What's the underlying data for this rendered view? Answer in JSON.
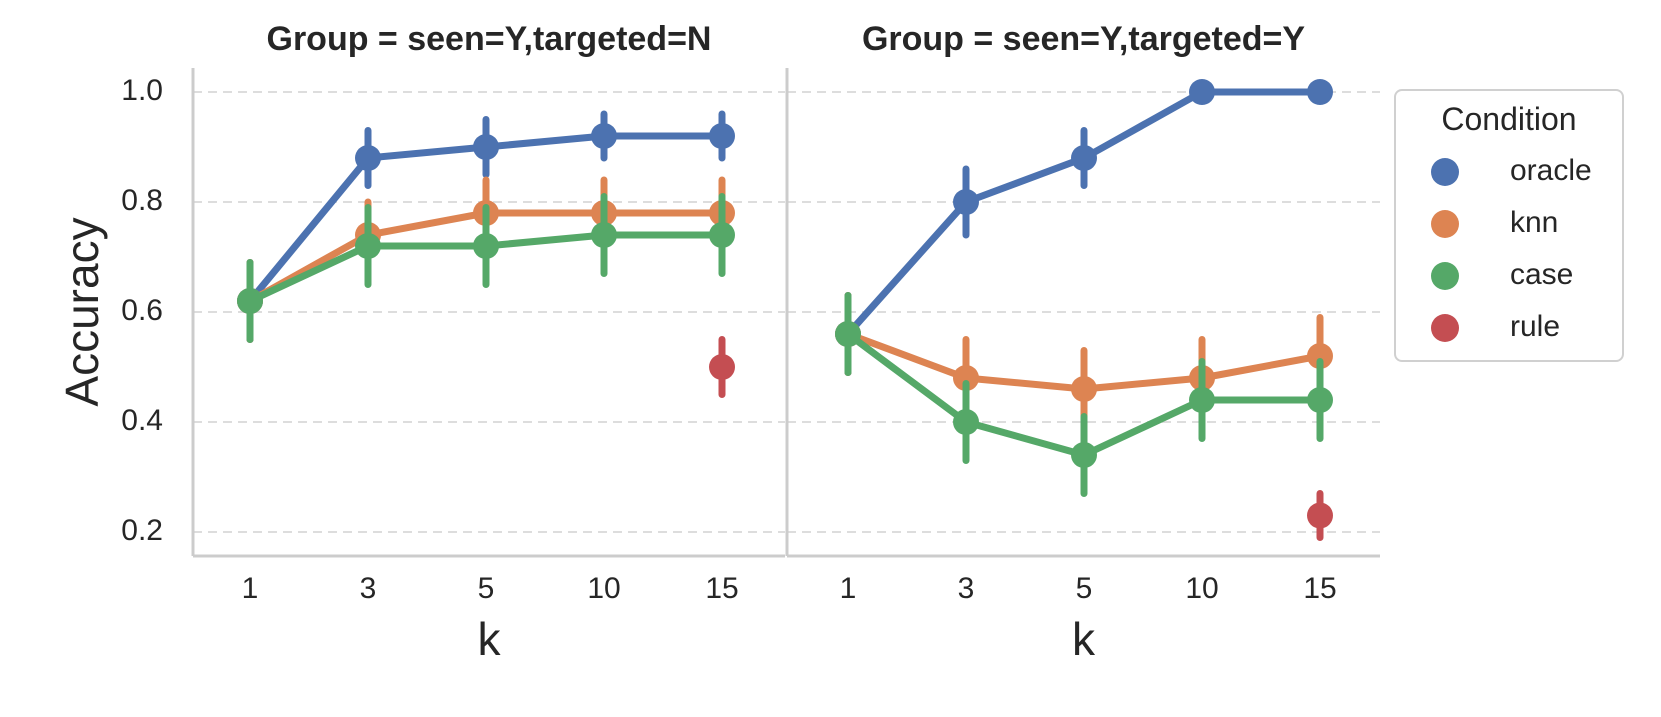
{
  "chart_data": {
    "type": "line",
    "ylabel": "Accuracy",
    "xlabel": "k",
    "categories": [
      "1",
      "3",
      "5",
      "10",
      "15"
    ],
    "ylim": [
      0.15,
      1.04
    ],
    "yticks": [
      0.2,
      0.4,
      0.6,
      0.8,
      1.0
    ],
    "ytick_labels": [
      "0.2",
      "0.4",
      "0.6",
      "0.8",
      "1.0"
    ],
    "grid": "horizontal dashed",
    "legend": {
      "title": "Condition",
      "placement": "right",
      "entries": [
        "oracle",
        "knn",
        "case",
        "rule"
      ]
    },
    "colors": {
      "oracle": "#4c72b0",
      "knn": "#dd8452",
      "case": "#55a868",
      "rule": "#c44e52"
    },
    "panels": [
      {
        "title": "Group = seen=Y,targeted=N",
        "series": [
          {
            "name": "oracle",
            "values": [
              0.62,
              0.88,
              0.9,
              0.92,
              0.92
            ],
            "err_low": [
              0.55,
              0.83,
              0.85,
              0.88,
              0.88
            ],
            "err_high": [
              0.69,
              0.93,
              0.95,
              0.96,
              0.96
            ]
          },
          {
            "name": "knn",
            "values": [
              0.62,
              0.74,
              0.78,
              0.78,
              0.78
            ],
            "err_low": [
              0.55,
              0.67,
              0.71,
              0.71,
              0.71
            ],
            "err_high": [
              0.69,
              0.8,
              0.84,
              0.84,
              0.84
            ]
          },
          {
            "name": "case",
            "values": [
              0.62,
              0.72,
              0.72,
              0.74,
              0.74
            ],
            "err_low": [
              0.55,
              0.65,
              0.65,
              0.67,
              0.67
            ],
            "err_high": [
              0.69,
              0.79,
              0.79,
              0.81,
              0.81
            ]
          },
          {
            "name": "rule",
            "values": [
              null,
              null,
              null,
              null,
              0.5
            ],
            "err_low": [
              null,
              null,
              null,
              null,
              0.45
            ],
            "err_high": [
              null,
              null,
              null,
              null,
              0.55
            ]
          }
        ]
      },
      {
        "title": "Group = seen=Y,targeted=Y",
        "series": [
          {
            "name": "oracle",
            "values": [
              0.56,
              0.8,
              0.88,
              1.0,
              1.0
            ],
            "err_low": [
              0.49,
              0.74,
              0.83,
              1.0,
              1.0
            ],
            "err_high": [
              0.63,
              0.86,
              0.93,
              1.0,
              1.0
            ]
          },
          {
            "name": "knn",
            "values": [
              0.56,
              0.48,
              0.46,
              0.48,
              0.52
            ],
            "err_low": [
              0.49,
              0.41,
              0.39,
              0.41,
              0.45
            ],
            "err_high": [
              0.63,
              0.55,
              0.53,
              0.55,
              0.59
            ]
          },
          {
            "name": "case",
            "values": [
              0.56,
              0.4,
              0.34,
              0.44,
              0.44
            ],
            "err_low": [
              0.49,
              0.33,
              0.27,
              0.37,
              0.37
            ],
            "err_high": [
              0.63,
              0.47,
              0.41,
              0.51,
              0.51
            ]
          },
          {
            "name": "rule",
            "values": [
              null,
              null,
              null,
              null,
              0.23
            ],
            "err_low": [
              null,
              null,
              null,
              null,
              0.19
            ],
            "err_high": [
              null,
              null,
              null,
              null,
              0.27
            ]
          }
        ]
      }
    ]
  }
}
